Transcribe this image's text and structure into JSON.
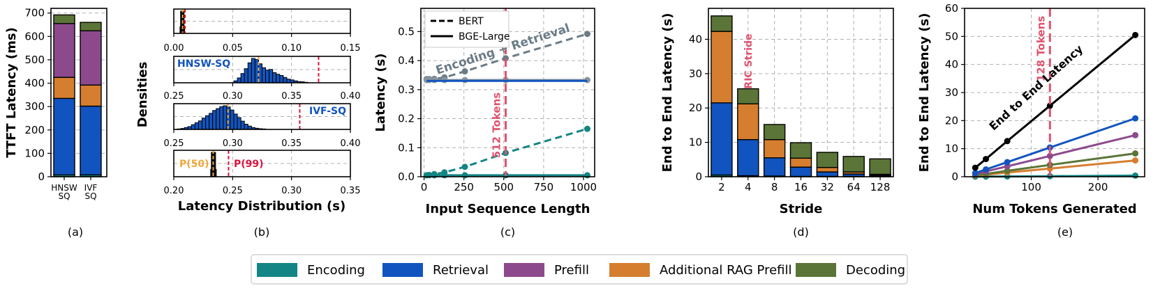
{
  "legend": {
    "items": [
      {
        "label": "Encoding",
        "color": "#138584"
      },
      {
        "label": "Retrieval",
        "color": "#1254bf"
      },
      {
        "label": "Prefill",
        "color": "#8c4a8d"
      },
      {
        "label": "Additional RAG Prefill",
        "color": "#d67e2f"
      },
      {
        "label": "Decoding",
        "color": "#5a7537"
      }
    ]
  },
  "chart_data": [
    {
      "id": "a",
      "caption": "(a)",
      "type": "bar",
      "stacked": true,
      "ylabel": "TTFT Latency (ms)",
      "ylim": [
        0,
        720
      ],
      "yticks": [
        0,
        100,
        200,
        300,
        400,
        500,
        600,
        700
      ],
      "categories": [
        "HNSW SQ",
        "IVF SQ"
      ],
      "category_lines": [
        [
          "HNSW",
          "SQ"
        ],
        [
          "IVF",
          "SQ"
        ]
      ],
      "series": [
        {
          "name": "Encoding",
          "values": [
            8,
            8
          ]
        },
        {
          "name": "Retrieval",
          "values": [
            327,
            294
          ]
        },
        {
          "name": "Additional RAG Prefill",
          "values": [
            90,
            90
          ]
        },
        {
          "name": "Prefill",
          "values": [
            230,
            232
          ]
        },
        {
          "name": "Decoding",
          "values": [
            37,
            36
          ]
        }
      ]
    },
    {
      "id": "b",
      "caption": "(b)",
      "type": "histogram",
      "ylabel": "Densities",
      "xlabel": "Latency Distribution (s)",
      "panels": [
        {
          "label": "",
          "xlim": [
            0,
            0.15
          ],
          "xticks": [
            "0.00",
            "0.05",
            "0.10",
            "0.15"
          ],
          "bins": [
            0.0055,
            0.006,
            0.0065,
            0.007,
            0.0075,
            0.008,
            0.0085,
            0.009
          ],
          "counts": [
            0.3,
            1,
            1,
            1,
            1,
            1,
            1,
            0.3
          ],
          "color": "#138584",
          "median": 0.0075,
          "p99": 0.0095
        },
        {
          "label": "HNSW-SQ",
          "xlim": [
            0.25,
            0.4
          ],
          "xticks": [
            "0.25",
            "0.30",
            "0.35",
            "0.40"
          ],
          "bins": [
            0.3025,
            0.3055,
            0.3085,
            0.3115,
            0.3145,
            0.3175,
            0.3205,
            0.3235,
            0.3265,
            0.3295,
            0.3325,
            0.3355,
            0.3385,
            0.3415,
            0.3445,
            0.3475,
            0.3505,
            0.3535,
            0.3565,
            0.3595,
            0.3625
          ],
          "counts": [
            0.08,
            0.2,
            0.38,
            0.58,
            0.82,
            1.0,
            0.96,
            0.78,
            0.62,
            0.52,
            0.55,
            0.42,
            0.35,
            0.3,
            0.22,
            0.15,
            0.12,
            0.08,
            0.05,
            0.04,
            0.02
          ],
          "color": "#1254bf",
          "median": 0.322,
          "p99": 0.373
        },
        {
          "label": "IVF-SQ",
          "xlim": [
            0.25,
            0.4
          ],
          "xticks": [
            "0.25",
            "0.30",
            "0.35",
            "0.40"
          ],
          "bins": [
            0.2545,
            0.2575,
            0.2605,
            0.2635,
            0.2665,
            0.2695,
            0.2725,
            0.2755,
            0.2785,
            0.2815,
            0.2845,
            0.2875,
            0.2905,
            0.2935,
            0.2965,
            0.2995,
            0.3025,
            0.3055,
            0.3085,
            0.3115,
            0.3145,
            0.3175,
            0.3205,
            0.3235,
            0.3265
          ],
          "counts": [
            0.02,
            0.04,
            0.08,
            0.12,
            0.2,
            0.28,
            0.36,
            0.48,
            0.58,
            0.68,
            0.8,
            0.88,
            0.96,
            1.0,
            0.95,
            0.82,
            0.65,
            0.5,
            0.35,
            0.22,
            0.14,
            0.08,
            0.05,
            0.03,
            0.02
          ],
          "color": "#1254bf",
          "median": 0.296,
          "p99": 0.357
        },
        {
          "label": "",
          "xlim": [
            0.2,
            0.35
          ],
          "xticks": [
            "0.20",
            "0.25",
            "0.30",
            "0.35"
          ],
          "bins": [
            0.2316,
            0.2322,
            0.2328,
            0.2334,
            0.234,
            0.2346,
            0.2352,
            0.2358
          ],
          "counts": [
            0.3,
            1,
            1,
            1,
            1,
            1,
            1,
            0.3
          ],
          "color": "#8c4a8d",
          "median": 0.2335,
          "p99": 0.2465
        }
      ],
      "annotations": {
        "p50": "P(50)",
        "p99": "P(99)",
        "p50_color": "#f0a83a",
        "p99_color": "#dc143c"
      }
    },
    {
      "id": "c",
      "caption": "(c)",
      "type": "line",
      "xlabel": "Input Sequence Length",
      "ylabel": "Latency (s)",
      "xlim": [
        -20,
        1070
      ],
      "ylim": [
        0,
        0.58
      ],
      "xticks": [
        0,
        250,
        500,
        750,
        1000
      ],
      "yticks": [
        "0.0",
        "0.1",
        "0.2",
        "0.3",
        "0.4",
        "0.5"
      ],
      "x": [
        16,
        32,
        64,
        128,
        256,
        512,
        1024
      ],
      "series": [
        {
          "name": "BERT Encoding + Retrieval",
          "style": "dashed",
          "color": "#6b7b86",
          "values": [
            0.336,
            0.336,
            0.337,
            0.342,
            0.363,
            0.408,
            0.492
          ]
        },
        {
          "name": "BGE-Large Encoding + Retrieval",
          "style": "solid",
          "color": "#8a959c",
          "values": [
            0.333,
            0.333,
            0.333,
            0.333,
            0.333,
            0.333,
            0.333
          ]
        },
        {
          "name": "BERT Encoding",
          "style": "dashed",
          "color": "#138584",
          "values": [
            0.005,
            0.006,
            0.009,
            0.015,
            0.034,
            0.082,
            0.165
          ]
        },
        {
          "name": "BGE-Large Encoding",
          "style": "solid",
          "color": "#138584",
          "values": [
            0.005,
            0.005,
            0.005,
            0.005,
            0.005,
            0.005,
            0.005
          ]
        },
        {
          "name": "Retrieval",
          "style": "solid",
          "color": "#1254bf",
          "values": [
            0.33,
            0.33,
            0.33,
            0.33,
            0.33,
            0.33,
            0.33
          ]
        }
      ],
      "legend": [
        "BERT",
        "BGE-Large"
      ],
      "annotations": {
        "curve": "Encoding + Retrieval",
        "vline": "512 Tokens",
        "vline_x": 512,
        "vline_color": "#e0536e"
      }
    },
    {
      "id": "d",
      "caption": "(d)",
      "type": "bar",
      "stacked": true,
      "xlabel": "Stride",
      "ylabel": "End to End Latency (s)",
      "ylim": [
        0,
        49
      ],
      "yticks": [
        0,
        10,
        20,
        30,
        40
      ],
      "categories": [
        "2",
        "4",
        "8",
        "16",
        "32",
        "64",
        "128"
      ],
      "series": [
        {
          "name": "Encoding",
          "values": [
            0.5,
            0.3,
            0.2,
            0.1,
            0.1,
            0.1,
            0.1
          ]
        },
        {
          "name": "Retrieval",
          "values": [
            21.0,
            10.5,
            5.3,
            2.7,
            1.3,
            0.7,
            0.3
          ]
        },
        {
          "name": "Additional RAG Prefill",
          "values": [
            20.8,
            10.4,
            5.3,
            2.6,
            1.3,
            0.6,
            0.3
          ]
        },
        {
          "name": "Decoding",
          "values": [
            4.5,
            4.4,
            4.4,
            4.5,
            4.4,
            4.5,
            4.5
          ]
        }
      ],
      "annotations": {
        "label": "RIC Stride",
        "color": "#e0536e"
      }
    },
    {
      "id": "e",
      "caption": "(e)",
      "type": "line",
      "xlabel": "Num Tokens Generated",
      "ylabel": "End to End Latency (s)",
      "xlim": [
        0,
        270
      ],
      "ylim": [
        0,
        60
      ],
      "xticks": [
        100,
        200
      ],
      "yticks": [
        0,
        10,
        20,
        30,
        40,
        50,
        60
      ],
      "x": [
        16,
        32,
        64,
        128,
        256
      ],
      "series": [
        {
          "name": "End to End",
          "color": "#000000",
          "values": [
            3.2,
            6.3,
            12.7,
            25.3,
            50.5
          ]
        },
        {
          "name": "Retrieval",
          "color": "#1254bf",
          "values": [
            1.3,
            2.6,
            5.2,
            10.4,
            20.8
          ]
        },
        {
          "name": "Prefill",
          "color": "#8c4a8d",
          "values": [
            0.9,
            1.9,
            3.7,
            7.4,
            14.8
          ]
        },
        {
          "name": "Decoding",
          "color": "#5a7537",
          "values": [
            0.5,
            1.0,
            2.1,
            4.2,
            8.3
          ]
        },
        {
          "name": "Additional RAG Prefill",
          "color": "#d67e2f",
          "values": [
            0.4,
            0.7,
            1.5,
            2.9,
            5.8
          ]
        },
        {
          "name": "Encoding",
          "color": "#138584",
          "values": [
            0.03,
            0.05,
            0.1,
            0.2,
            0.4
          ]
        }
      ],
      "annotations": {
        "curve": "End to End Latency",
        "vline": "128 Tokens",
        "vline_x": 128,
        "vline_color": "#e0536e"
      }
    }
  ]
}
